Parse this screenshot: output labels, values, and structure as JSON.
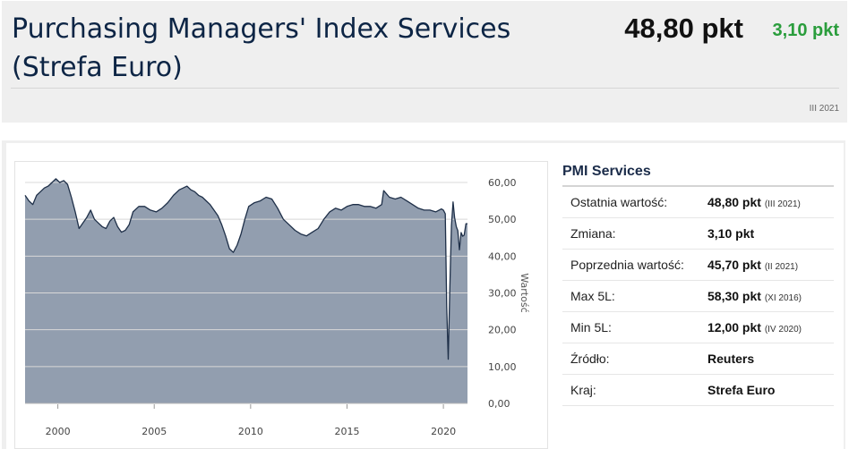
{
  "header": {
    "title": "Purchasing Managers' Index Services (Strefa Euro)",
    "price": "48,80 pkt",
    "change": "3,10 pkt",
    "period": "III 2021"
  },
  "side": {
    "title": "PMI Services",
    "rows": [
      {
        "label": "Ostatnia wartość:",
        "value": "48,80 pkt",
        "sub": "(III 2021)"
      },
      {
        "label": "Zmiana:",
        "value": "3,10 pkt",
        "sub": ""
      },
      {
        "label": "Poprzednia wartość:",
        "value": "45,70 pkt",
        "sub": "(II 2021)"
      },
      {
        "label": "Max 5L:",
        "value": "58,30 pkt",
        "sub": "(XI 2016)"
      },
      {
        "label": "Min 5L:",
        "value": "12,00 pkt",
        "sub": "(IV 2020)"
      },
      {
        "label": "Źródło:",
        "value": "Reuters",
        "sub": ""
      },
      {
        "label": "Kraj:",
        "value": "Strefa Euro",
        "sub": ""
      }
    ]
  },
  "colors": {
    "area_fill": "#929eaf",
    "line": "#1e2f48",
    "up": "#2a9d3c",
    "title": "#0d2545"
  },
  "chart_data": {
    "type": "area",
    "ylabel": "Wartość",
    "ylim": [
      0,
      60
    ],
    "yticks": [
      "0,00",
      "10,00",
      "20,00",
      "30,00",
      "40,00",
      "50,00",
      "60,00"
    ],
    "xticks": [
      "2000",
      "2005",
      "2010",
      "2015",
      "2020"
    ],
    "xlim": [
      1998.3,
      2021.25
    ],
    "series": [
      {
        "x": [
          1998.3,
          1998.5,
          1998.7,
          1998.9,
          1999.1,
          1999.3,
          1999.5,
          1999.7,
          1999.9,
          2000.1,
          2000.3,
          2000.5,
          2000.7,
          2000.9,
          2001.1,
          2001.3,
          2001.5,
          2001.7,
          2001.9,
          2002.1,
          2002.3,
          2002.5,
          2002.7,
          2002.9,
          2003.1,
          2003.3,
          2003.5,
          2003.7,
          2003.9,
          2004.2,
          2004.5,
          2004.8,
          2005.1,
          2005.4,
          2005.7,
          2006.0,
          2006.3,
          2006.5,
          2006.7,
          2006.9,
          2007.1,
          2007.3,
          2007.5,
          2007.7,
          2007.9,
          2008.1,
          2008.3,
          2008.5,
          2008.7,
          2008.9,
          2009.1,
          2009.3,
          2009.5,
          2009.7,
          2009.9,
          2010.2,
          2010.5,
          2010.8,
          2011.1,
          2011.4,
          2011.7,
          2012.0,
          2012.3,
          2012.6,
          2012.9,
          2013.2,
          2013.5,
          2013.8,
          2014.1,
          2014.4,
          2014.7,
          2015.0,
          2015.3,
          2015.6,
          2015.9,
          2016.2,
          2016.5,
          2016.8,
          2016.9,
          2017.2,
          2017.5,
          2017.8,
          2018.1,
          2018.4,
          2018.7,
          2019.0,
          2019.3,
          2019.6,
          2019.9,
          2020.0,
          2020.1,
          2020.17,
          2020.25,
          2020.33,
          2020.42,
          2020.5,
          2020.58,
          2020.67,
          2020.75,
          2020.83,
          2020.92,
          2021.0,
          2021.08,
          2021.17,
          2021.25
        ],
        "y": [
          56.5,
          55.0,
          54.0,
          56.5,
          57.5,
          58.5,
          59.0,
          60.0,
          61.0,
          60.0,
          60.5,
          59.5,
          56.0,
          52.0,
          47.5,
          49.0,
          50.5,
          52.5,
          50.0,
          49.0,
          48.0,
          47.5,
          49.5,
          50.5,
          48.0,
          46.5,
          47.0,
          48.5,
          52.0,
          53.5,
          53.5,
          52.5,
          52.0,
          53.0,
          54.5,
          56.5,
          58.0,
          58.5,
          59.0,
          58.0,
          57.5,
          56.5,
          56.0,
          55.0,
          54.0,
          52.5,
          51.0,
          48.5,
          45.5,
          42.0,
          41.0,
          43.0,
          46.0,
          50.0,
          53.5,
          54.5,
          55.0,
          56.0,
          55.5,
          53.0,
          50.0,
          48.5,
          47.0,
          46.0,
          45.5,
          46.5,
          47.5,
          50.0,
          52.0,
          53.0,
          52.5,
          53.5,
          54.0,
          54.0,
          53.5,
          53.5,
          53.0,
          54.0,
          57.8,
          56.0,
          55.5,
          56.0,
          55.0,
          54.0,
          53.0,
          52.5,
          52.5,
          52.0,
          52.8,
          52.5,
          51.5,
          26.4,
          12.0,
          30.5,
          48.3,
          54.7,
          50.5,
          48.0,
          46.9,
          41.7,
          46.4,
          45.4,
          45.7,
          48.8,
          48.8
        ]
      }
    ]
  }
}
